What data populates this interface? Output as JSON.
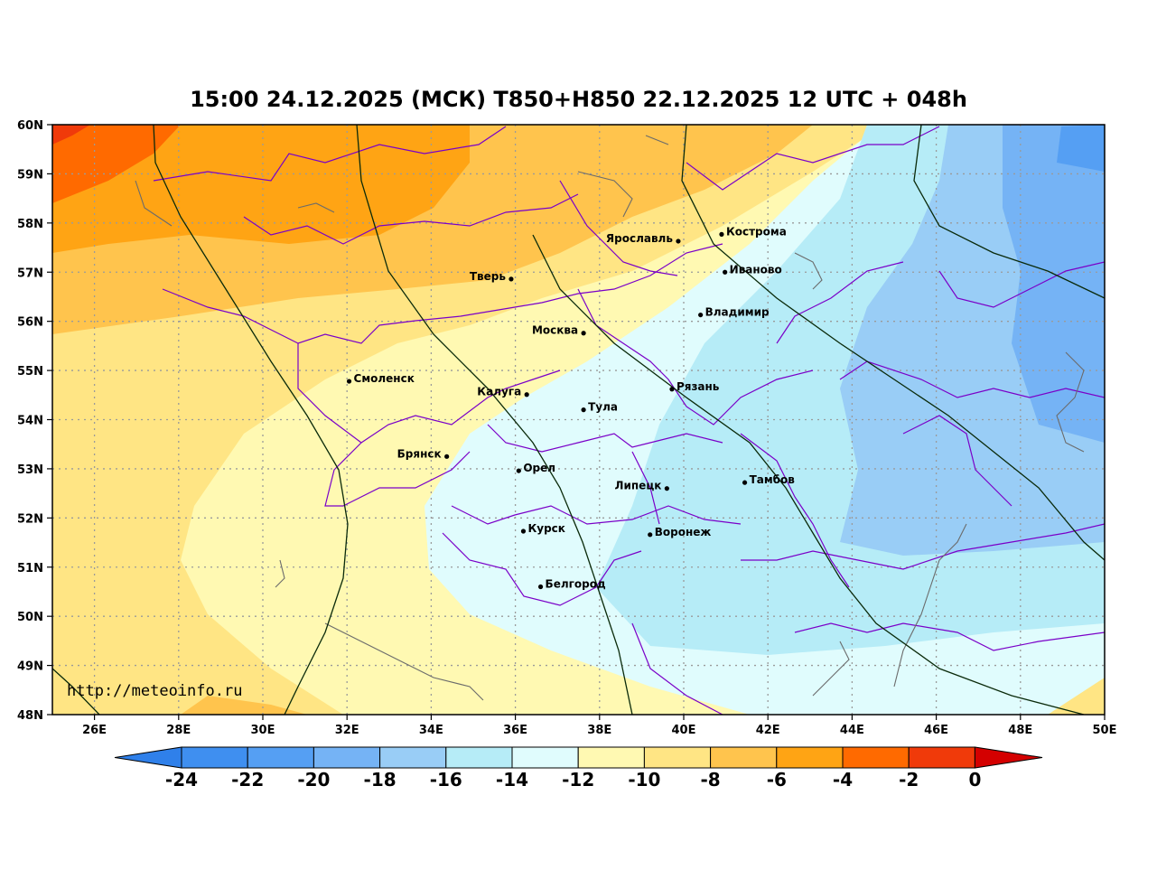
{
  "title": "15:00 24.12.2025 (МСК) T850+H850 22.12.2025 12 UTC + 048h",
  "url": "http://meteoinfo.ru",
  "lat_labels": [
    "60N",
    "59N",
    "58N",
    "57N",
    "56N",
    "55N",
    "54N",
    "53N",
    "52N",
    "51N",
    "50N",
    "49N",
    "48N"
  ],
  "lon_labels": [
    "26E",
    "28E",
    "30E",
    "32E",
    "34E",
    "36E",
    "38E",
    "40E",
    "42E",
    "44E",
    "46E",
    "48E",
    "50E"
  ],
  "cities": [
    {
      "name": "Кострома",
      "lon": 40.9,
      "lat": 57.77,
      "side": "right"
    },
    {
      "name": "Ярославль",
      "lon": 39.87,
      "lat": 57.63,
      "side": "left"
    },
    {
      "name": "Иваново",
      "lon": 40.98,
      "lat": 57.0,
      "side": "right"
    },
    {
      "name": "Тверь",
      "lon": 35.9,
      "lat": 56.86,
      "side": "left"
    },
    {
      "name": "Владимир",
      "lon": 40.4,
      "lat": 56.13,
      "side": "right"
    },
    {
      "name": "Москва",
      "lon": 37.62,
      "lat": 55.76,
      "side": "left"
    },
    {
      "name": "Смоленск",
      "lon": 32.05,
      "lat": 54.78,
      "side": "right"
    },
    {
      "name": "Калуга",
      "lon": 36.27,
      "lat": 54.51,
      "side": "left"
    },
    {
      "name": "Рязань",
      "lon": 39.72,
      "lat": 54.62,
      "side": "right"
    },
    {
      "name": "Тула",
      "lon": 37.62,
      "lat": 54.2,
      "side": "right"
    },
    {
      "name": "Брянск",
      "lon": 34.37,
      "lat": 53.25,
      "side": "left"
    },
    {
      "name": "Орел",
      "lon": 36.08,
      "lat": 52.96,
      "side": "right"
    },
    {
      "name": "Тамбов",
      "lon": 41.45,
      "lat": 52.72,
      "side": "right"
    },
    {
      "name": "Липецк",
      "lon": 39.6,
      "lat": 52.6,
      "side": "left"
    },
    {
      "name": "Курск",
      "lon": 36.19,
      "lat": 51.73,
      "side": "right"
    },
    {
      "name": "Воронеж",
      "lon": 39.2,
      "lat": 51.66,
      "side": "right"
    },
    {
      "name": "Белгород",
      "lon": 36.6,
      "lat": 50.6,
      "side": "right"
    }
  ],
  "colorbar": {
    "labels": [
      "-24",
      "-22",
      "-20",
      "-18",
      "-16",
      "-14",
      "-12",
      "-10",
      "-8",
      "-6",
      "-4",
      "-2",
      "0"
    ],
    "min_color": "#2f80ea",
    "max_color": "#d40000",
    "colors": [
      "#3f8ff0",
      "#559ff3",
      "#75b3f5",
      "#99cdf6",
      "#b6ecf7",
      "#e0fcfd",
      "#fff9b2",
      "#ffe584",
      "#ffc44d",
      "#ffa414",
      "#ff6a00",
      "#f03a0a"
    ]
  },
  "colors": {
    "borders": "#7a00c8",
    "coast": "#6b6b6b",
    "isohypse": "#0a2a0a",
    "grid": "#9a9a9a"
  }
}
